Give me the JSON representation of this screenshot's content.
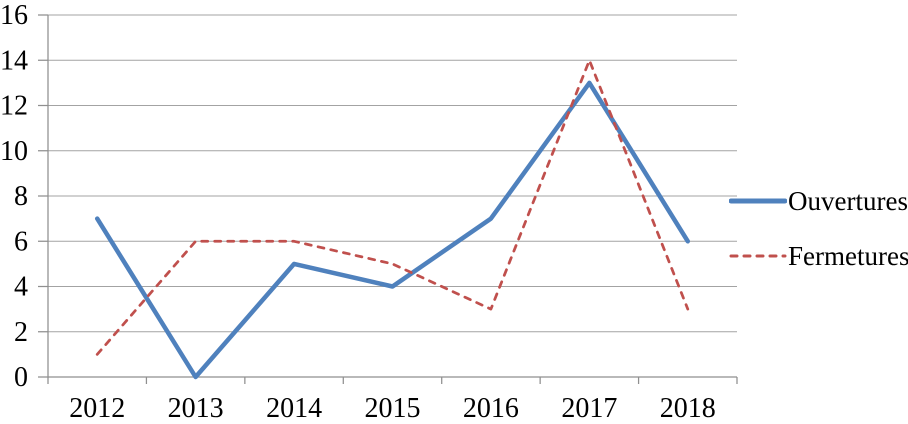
{
  "chart_data": {
    "type": "line",
    "title": "",
    "xlabel": "",
    "ylabel": "",
    "categories": [
      "2012",
      "2013",
      "2014",
      "2015",
      "2016",
      "2017",
      "2018"
    ],
    "series": [
      {
        "name": "Ouvertures",
        "values": [
          7,
          0,
          5,
          4,
          7,
          13,
          6
        ],
        "color": "#4F81BD",
        "line_style": "solid"
      },
      {
        "name": "Fermetures",
        "values": [
          1,
          6,
          6,
          5,
          3,
          14,
          3
        ],
        "color": "#C0504D",
        "line_style": "dashed"
      }
    ],
    "ylim": [
      0,
      16
    ],
    "ytick_step": 2,
    "y_ticks": [
      0,
      2,
      4,
      6,
      8,
      10,
      12,
      14,
      16
    ],
    "grid": true,
    "legend_position": "right",
    "gridline_color": "#A3A3A3",
    "axis_color": "#8F8F8F",
    "text_color": "#000000",
    "background_color": "#FFFFFF"
  }
}
